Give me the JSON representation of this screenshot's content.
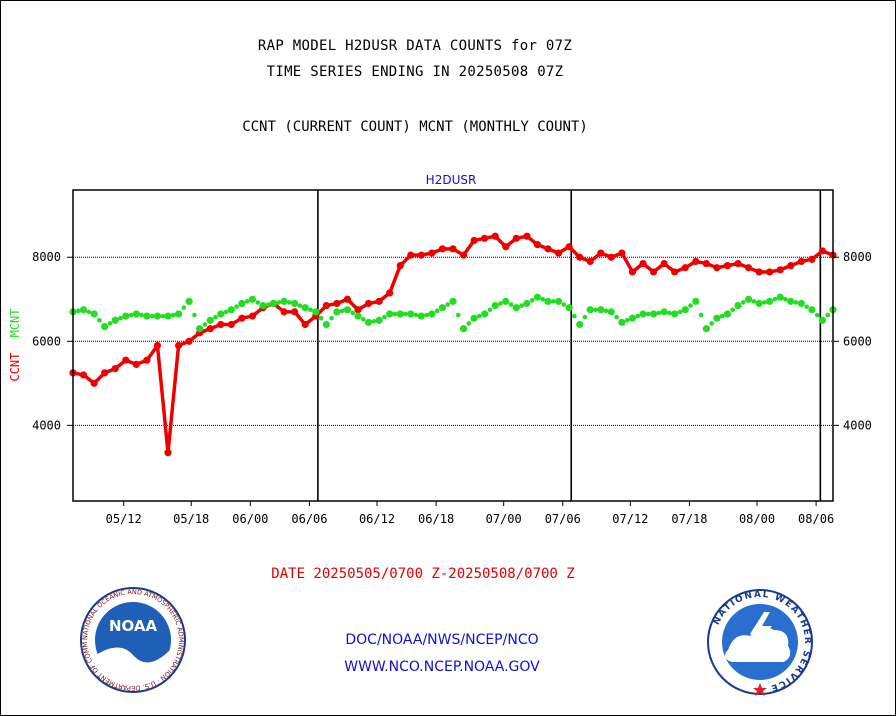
{
  "header": {
    "title_line1": "RAP MODEL H2DUSR DATA COUNTS for 07Z",
    "title_line2": "TIME SERIES ENDING IN 20250508 07Z",
    "subtitle": "CCNT (CURRENT COUNT) MCNT (MONTHLY COUNT)"
  },
  "footer": {
    "date_range": "DATE 20250505/0700 Z-20250508/0700 Z",
    "org_path": "DOC/NOAA/NWS/NCEP/NCO",
    "website": "WWW.NCO.NCEP.NOAA.GOV",
    "noaa_logo_text": "NOAA",
    "noaa_seal_text": "NATIONAL OCEANIC AND ATMOSPHERIC ADMINISTRATION · U.S. DEPARTMENT OF COMMERCE ·",
    "nws_seal_text": "NATIONAL WEATHER SERVICE"
  },
  "colors": {
    "ccnt": "#ee0000",
    "mcnt": "#22dd22",
    "title_blue": "#1010d0",
    "grid": "#000000"
  },
  "chart_data": {
    "type": "line",
    "title": "H2DUSR",
    "ylabel_ccnt": "CCNT",
    "ylabel_mcnt": "MCNT",
    "xlim": [
      0,
      90
    ],
    "ylim": [
      2200,
      9600
    ],
    "y_ticks": [
      4000,
      6000,
      8000
    ],
    "x_ticks": [
      {
        "x": 6,
        "label": "05/12"
      },
      {
        "x": 14,
        "label": "05/18"
      },
      {
        "x": 21,
        "label": "06/00"
      },
      {
        "x": 28,
        "label": "06/06"
      },
      {
        "x": 36,
        "label": "06/12"
      },
      {
        "x": 43,
        "label": "06/18"
      },
      {
        "x": 51,
        "label": "07/00"
      },
      {
        "x": 58,
        "label": "07/06"
      },
      {
        "x": 66,
        "label": "07/12"
      },
      {
        "x": 73,
        "label": "07/18"
      },
      {
        "x": 81,
        "label": "08/00"
      },
      {
        "x": 88,
        "label": "08/06"
      }
    ],
    "day_boundaries": [
      29,
      59,
      88.5
    ],
    "grid": "horizontal dotted",
    "series": [
      {
        "name": "CCNT",
        "color": "#ee0000",
        "values": [
          5250,
          5200,
          5000,
          5250,
          5350,
          5550,
          5450,
          5550,
          5900,
          3350,
          5900,
          6000,
          6200,
          6300,
          6400,
          6400,
          6550,
          6600,
          6800,
          6900,
          6700,
          6700,
          6400,
          6600,
          6850,
          6900,
          7000,
          6750,
          6900,
          6950,
          7150,
          7800,
          8050,
          8050,
          8100,
          8200,
          8200,
          8050,
          8400,
          8450,
          8500,
          8250,
          8450,
          8500,
          8300,
          8200,
          8100,
          8250,
          8000,
          7900,
          8100,
          8000,
          8100,
          7650,
          7850,
          7650,
          7850,
          7650,
          7750,
          7900,
          7850,
          7750,
          7800,
          7850,
          7750,
          7650,
          7650,
          7700,
          7800,
          7900,
          7950,
          8150,
          8050
        ]
      },
      {
        "name": "MCNT",
        "color": "#22dd22",
        "values": [
          6700,
          6750,
          6650,
          6350,
          6500,
          6600,
          6650,
          6600,
          6600,
          6600,
          6650,
          6950,
          6300,
          6500,
          6650,
          6750,
          6900,
          7000,
          6850,
          6900,
          6950,
          6900,
          6800,
          6700,
          6400,
          6700,
          6750,
          6600,
          6450,
          6500,
          6650,
          6650,
          6650,
          6600,
          6650,
          6800,
          6950,
          6300,
          6550,
          6650,
          6850,
          6950,
          6800,
          6900,
          7050,
          6950,
          6950,
          6800,
          6400,
          6750,
          6750,
          6700,
          6450,
          6550,
          6650,
          6650,
          6700,
          6650,
          6750,
          6950,
          6300,
          6550,
          6650,
          6850,
          7000,
          6900,
          6950,
          7050,
          6950,
          6900,
          6750,
          6500,
          6750
        ]
      }
    ]
  }
}
